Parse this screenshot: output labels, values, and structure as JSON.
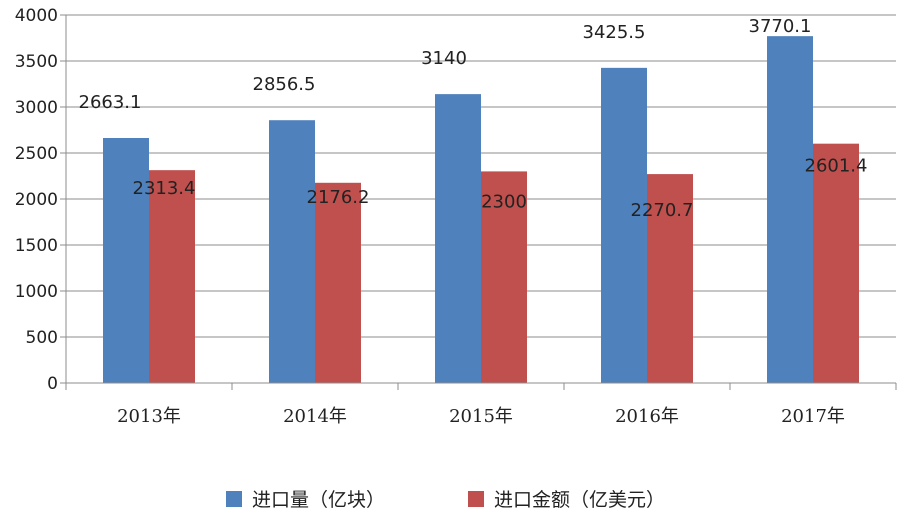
{
  "chart_data": {
    "type": "bar",
    "categories": [
      "2013年",
      "2014年",
      "2015年",
      "2016年",
      "2017年"
    ],
    "series": [
      {
        "name": "进口量（亿块）",
        "values": [
          2663.1,
          2856.5,
          3140,
          3425.5,
          3770.1
        ],
        "labels": [
          "2663.1",
          "2856.5",
          "3140",
          "3425.5",
          "3770.1"
        ],
        "color": "#4f81bd"
      },
      {
        "name": "进口金额（亿美元）",
        "values": [
          2313.4,
          2176.2,
          2300,
          2270.7,
          2601.4
        ],
        "labels": [
          "2313.4",
          "2176.2",
          "2300",
          "2270.7",
          "2601.4"
        ],
        "color": "#c0504d"
      }
    ],
    "yticks": [
      "0",
      "500",
      "1000",
      "1500",
      "2000",
      "2500",
      "3000",
      "3500",
      "4000"
    ],
    "ylim": [
      0,
      4000
    ],
    "grid": true,
    "legend": "bottom"
  }
}
